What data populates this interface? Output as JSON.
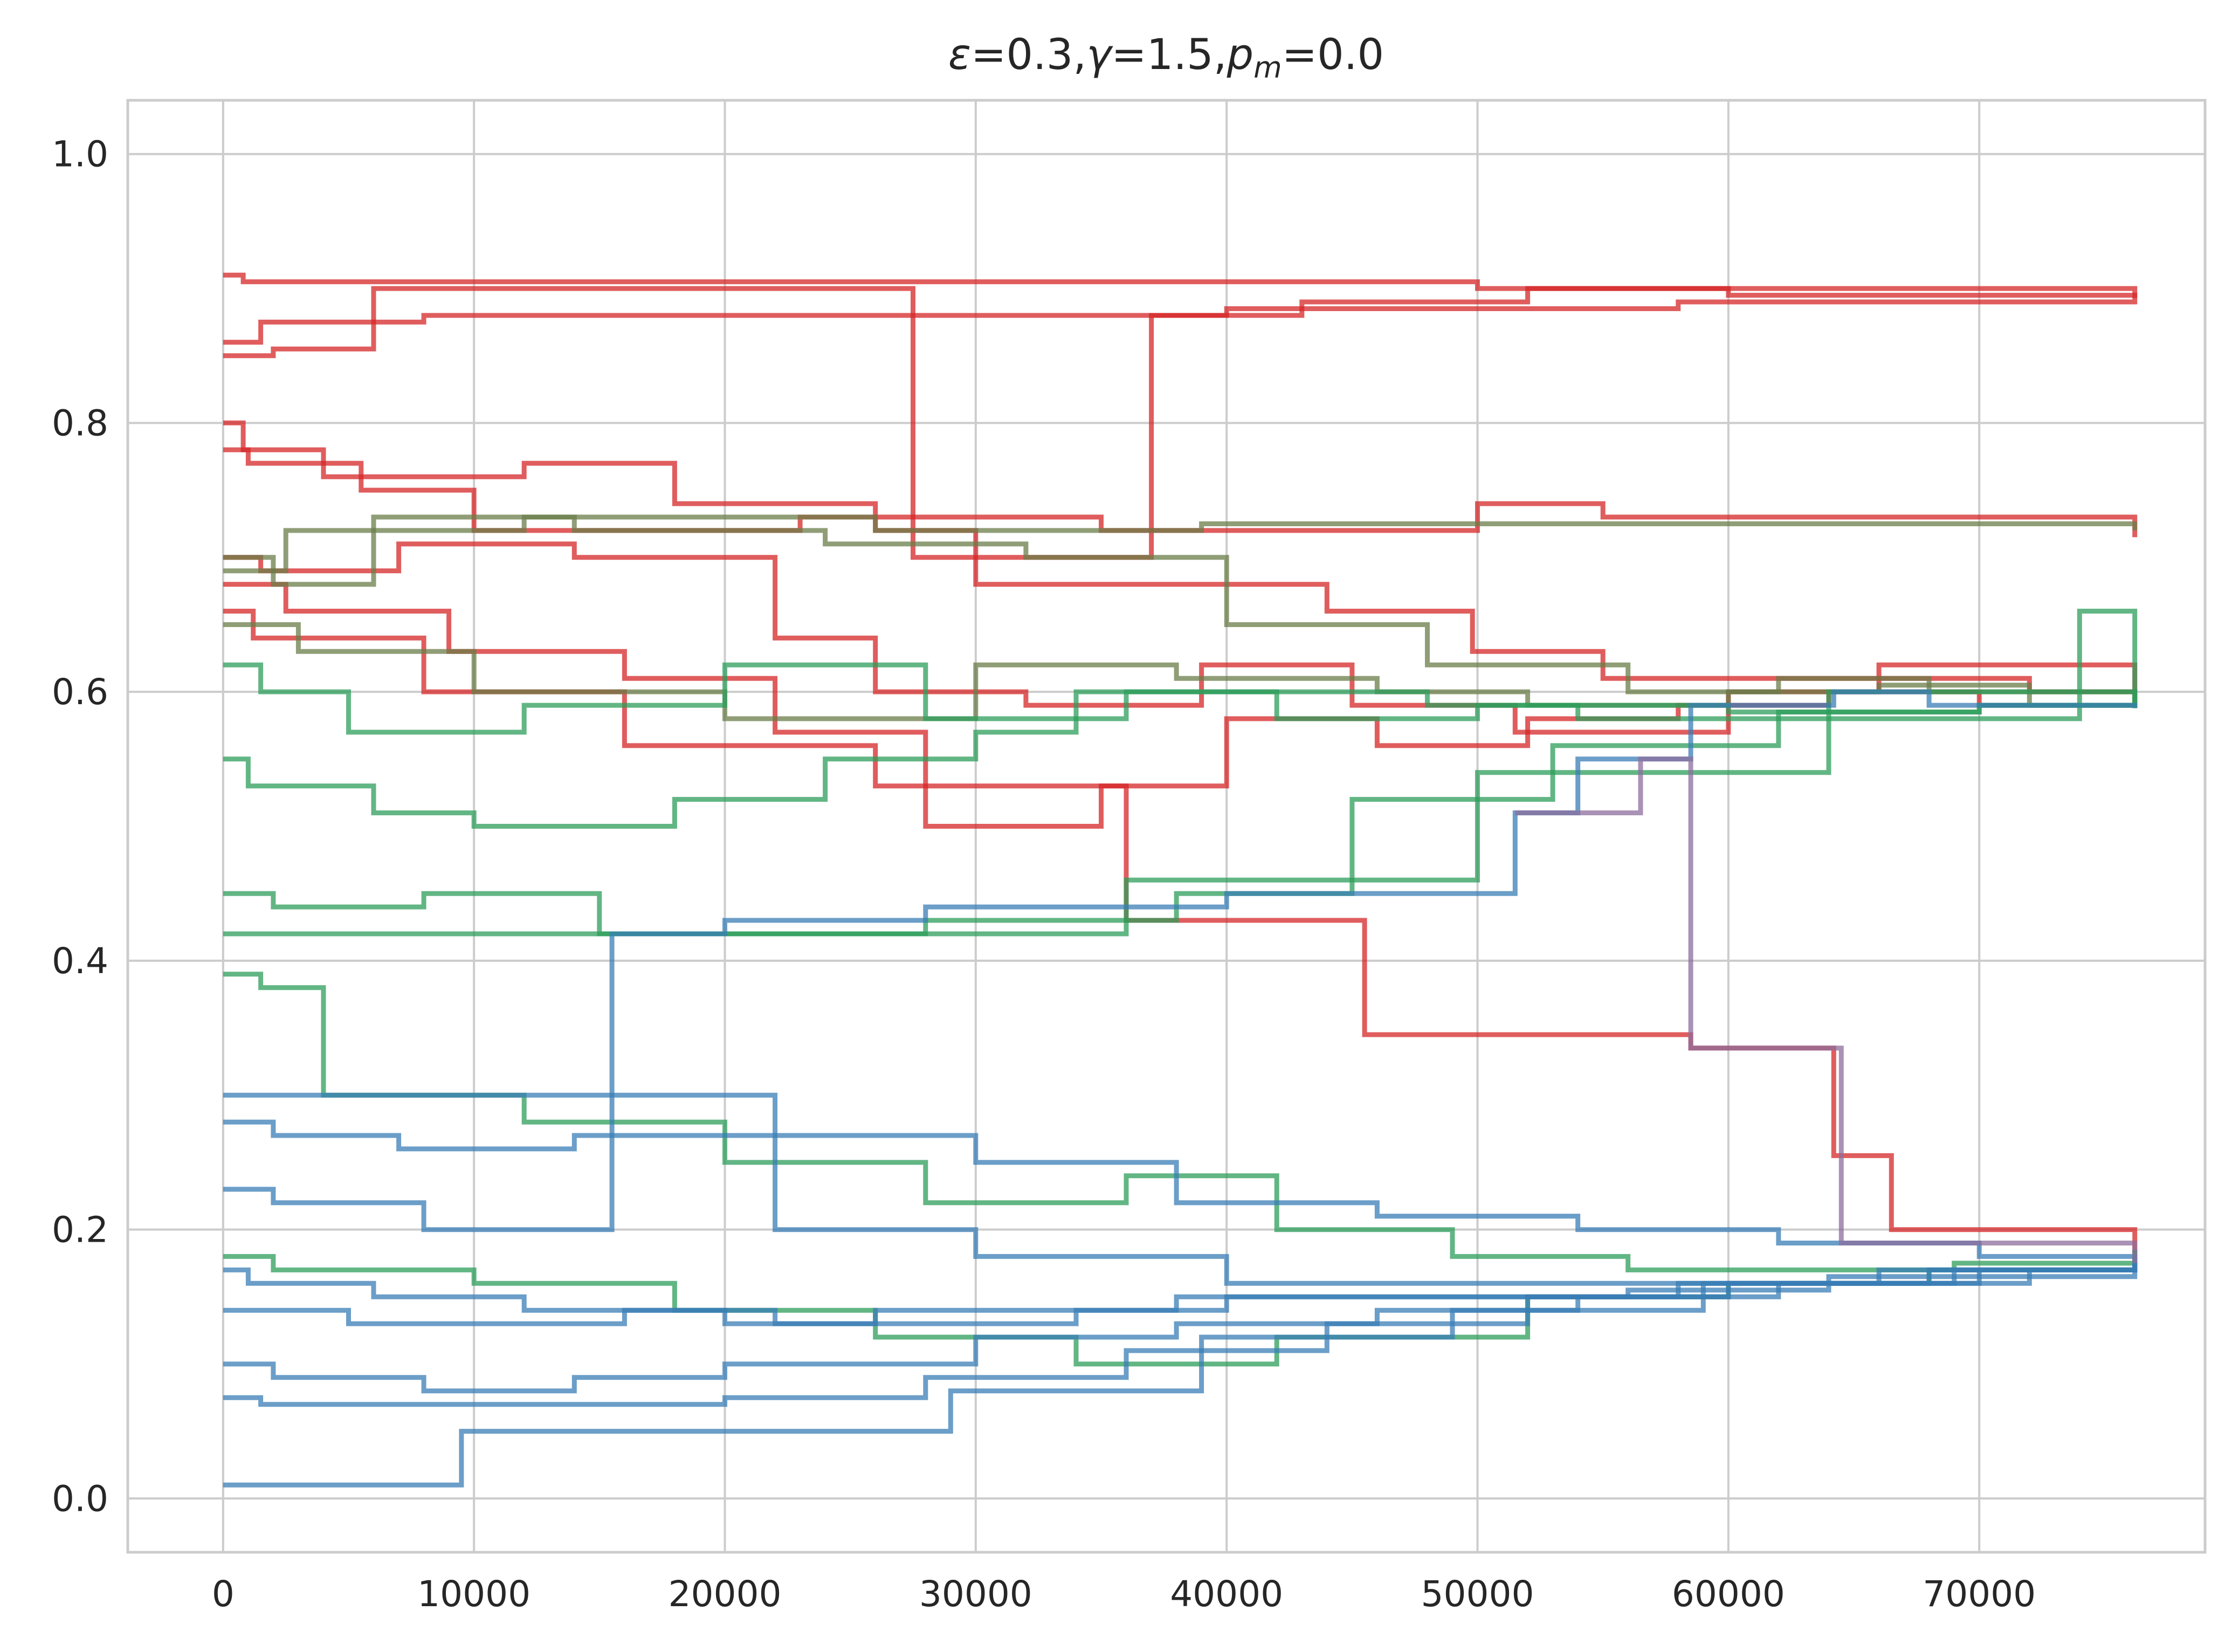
{
  "chart_data": {
    "type": "line",
    "title": "ε=0.3,γ=1.5,p_m=0.0",
    "title_parts": {
      "eps": "ε",
      "eps_val": "=0.3,",
      "gamma": "γ",
      "gamma_val": "=1.5,",
      "p": "p",
      "p_sub": "m",
      "p_val": "=0.0"
    },
    "xlabel": "",
    "ylabel": "",
    "xlim": [
      -3800,
      79000
    ],
    "ylim": [
      -0.04,
      1.04
    ],
    "x_ticks": [
      0,
      10000,
      20000,
      30000,
      40000,
      50000,
      60000,
      70000
    ],
    "y_ticks": [
      0.0,
      0.2,
      0.4,
      0.6,
      0.8,
      1.0
    ],
    "x_tick_labels": [
      "0",
      "10000",
      "20000",
      "30000",
      "40000",
      "50000",
      "60000",
      "70000"
    ],
    "y_tick_labels": [
      "0.0",
      "0.2",
      "0.4",
      "0.6",
      "0.8",
      "1.0"
    ],
    "grid": true,
    "legend": "none",
    "colors": {
      "red": "#d62728",
      "green": "#2ca02c",
      "seagreen": "#2e9e5b",
      "blue": "#3a7db5",
      "olive": "#6b7d4a",
      "purple": "#8c6d9c"
    },
    "series": [
      {
        "color": "#d62728",
        "x": [
          0,
          800,
          10000,
          30000,
          50000,
          60000,
          76200
        ],
        "y": [
          0.91,
          0.905,
          0.905,
          0.905,
          0.9,
          0.895,
          0.893
        ]
      },
      {
        "color": "#d62728",
        "x": [
          0,
          1500,
          8000,
          20000,
          40000,
          58000,
          76200
        ],
        "y": [
          0.86,
          0.875,
          0.88,
          0.88,
          0.885,
          0.89,
          0.893
        ]
      },
      {
        "color": "#d62728",
        "x": [
          0,
          2000,
          6000,
          27500,
          37000,
          43000,
          52000,
          76200
        ],
        "y": [
          0.85,
          0.855,
          0.9,
          0.7,
          0.88,
          0.89,
          0.9,
          0.893
        ]
      },
      {
        "color": "#d62728",
        "x": [
          0,
          1000,
          5500,
          10000,
          23000,
          35000,
          50000,
          55000,
          64000,
          76200
        ],
        "y": [
          0.78,
          0.77,
          0.75,
          0.72,
          0.73,
          0.72,
          0.74,
          0.73,
          0.73,
          0.715
        ]
      },
      {
        "color": "#d62728",
        "x": [
          0,
          800,
          4000,
          12000,
          18000,
          26000,
          30000,
          44000,
          49800,
          55000,
          72000,
          76200
        ],
        "y": [
          0.8,
          0.78,
          0.76,
          0.77,
          0.74,
          0.72,
          0.68,
          0.66,
          0.63,
          0.61,
          0.6,
          0.588
        ]
      },
      {
        "color": "#d62728",
        "x": [
          0,
          1500,
          7000,
          14000,
          22000,
          26000,
          32000,
          39000,
          45000,
          51500,
          60000,
          66000,
          76200
        ],
        "y": [
          0.7,
          0.69,
          0.71,
          0.7,
          0.64,
          0.6,
          0.59,
          0.62,
          0.59,
          0.57,
          0.6,
          0.62,
          0.588
        ]
      },
      {
        "color": "#d62728",
        "x": [
          0,
          2500,
          9000,
          16000,
          22000,
          28000,
          35000,
          40000,
          46000,
          52000,
          58000,
          64000,
          70000,
          76200
        ],
        "y": [
          0.68,
          0.66,
          0.63,
          0.61,
          0.57,
          0.5,
          0.53,
          0.58,
          0.56,
          0.58,
          0.59,
          0.6,
          0.59,
          0.588
        ]
      },
      {
        "color": "#d62728",
        "x": [
          0,
          1200,
          8000,
          16000,
          26000,
          36000,
          45500,
          58500,
          64200,
          66500,
          76200
        ],
        "y": [
          0.66,
          0.64,
          0.6,
          0.56,
          0.53,
          0.43,
          0.345,
          0.335,
          0.255,
          0.2,
          0.175
        ]
      },
      {
        "color": "#6b7d4a",
        "x": [
          0,
          2000,
          6000,
          14000,
          24000,
          32000,
          40000,
          48000,
          56000,
          62000,
          68000,
          76200
        ],
        "y": [
          0.7,
          0.68,
          0.73,
          0.72,
          0.71,
          0.7,
          0.65,
          0.62,
          0.6,
          0.61,
          0.6,
          0.588
        ]
      },
      {
        "color": "#6b7d4a",
        "x": [
          0,
          3000,
          10000,
          20000,
          30000,
          38000,
          46000,
          52000,
          60000,
          66000,
          72000,
          76200
        ],
        "y": [
          0.65,
          0.63,
          0.6,
          0.58,
          0.62,
          0.61,
          0.6,
          0.59,
          0.6,
          0.605,
          0.59,
          0.588
        ]
      },
      {
        "color": "#6b7d4a",
        "x": [
          0,
          2500,
          12000,
          26000,
          39000,
          55000,
          75000,
          76200
        ],
        "y": [
          0.69,
          0.72,
          0.73,
          0.72,
          0.725,
          0.725,
          0.725,
          0.72
        ]
      },
      {
        "color": "#2e9e5b",
        "x": [
          0,
          1500,
          5000,
          12000,
          20000,
          28000,
          36000,
          42000,
          50000,
          60000,
          70000,
          76200
        ],
        "y": [
          0.62,
          0.6,
          0.57,
          0.59,
          0.62,
          0.58,
          0.6,
          0.58,
          0.59,
          0.585,
          0.59,
          0.588
        ]
      },
      {
        "color": "#2e9e5b",
        "x": [
          0,
          1000,
          6000,
          10000,
          18000,
          24000,
          30000,
          34000,
          40000,
          48000,
          54000,
          62000,
          70000,
          76200
        ],
        "y": [
          0.55,
          0.53,
          0.51,
          0.5,
          0.52,
          0.55,
          0.57,
          0.6,
          0.6,
          0.59,
          0.58,
          0.585,
          0.59,
          0.588
        ]
      },
      {
        "color": "#2e9e5b",
        "x": [
          0,
          2000,
          8000,
          15000,
          26000,
          36000,
          50000,
          64000,
          76200
        ],
        "y": [
          0.45,
          0.44,
          0.45,
          0.42,
          0.42,
          0.46,
          0.54,
          0.6,
          0.588
        ]
      },
      {
        "color": "#2e9e5b",
        "x": [
          0,
          1500,
          9500,
          18000,
          28000,
          38000,
          45000,
          53000,
          62000,
          74000,
          76200
        ],
        "y": [
          0.42,
          0.42,
          0.42,
          0.42,
          0.43,
          0.45,
          0.52,
          0.56,
          0.58,
          0.66,
          0.588
        ]
      },
      {
        "color": "#2e9e5b",
        "x": [
          0,
          1500,
          4000,
          12000,
          20000,
          28000,
          36000,
          42000,
          49000,
          56000,
          62000,
          69000,
          76200
        ],
        "y": [
          0.39,
          0.38,
          0.3,
          0.28,
          0.25,
          0.22,
          0.24,
          0.2,
          0.18,
          0.17,
          0.17,
          0.175,
          0.185
        ]
      },
      {
        "color": "#2e9e5b",
        "x": [
          0,
          2000,
          10000,
          18000,
          26000,
          34000,
          42000,
          52000,
          60000,
          68000,
          76200
        ],
        "y": [
          0.18,
          0.17,
          0.16,
          0.14,
          0.12,
          0.1,
          0.12,
          0.15,
          0.16,
          0.17,
          0.185
        ]
      },
      {
        "color": "#3a7db5",
        "x": [
          0,
          2000,
          8000,
          14000,
          22000,
          30000,
          38000,
          46000,
          54000,
          62000,
          70000,
          76200
        ],
        "y": [
          0.3,
          0.3,
          0.3,
          0.3,
          0.27,
          0.25,
          0.22,
          0.21,
          0.2,
          0.19,
          0.18,
          0.175
        ]
      },
      {
        "color": "#3a7db5",
        "x": [
          0,
          2000,
          7000,
          14000,
          22000,
          30000,
          40000,
          52000,
          64000,
          76200
        ],
        "y": [
          0.28,
          0.27,
          0.26,
          0.27,
          0.2,
          0.18,
          0.16,
          0.16,
          0.165,
          0.175
        ]
      },
      {
        "color": "#3a7db5",
        "x": [
          0,
          1000,
          6000,
          12000,
          20000,
          26000,
          32000,
          38000,
          44000,
          50000,
          58000,
          66000,
          76200
        ],
        "y": [
          0.17,
          0.16,
          0.15,
          0.14,
          0.13,
          0.14,
          0.14,
          0.15,
          0.15,
          0.15,
          0.16,
          0.17,
          0.175
        ]
      },
      {
        "color": "#3a7db5",
        "x": [
          0,
          1500,
          5000,
          10000,
          16000,
          22000,
          28000,
          34000,
          40000,
          48000,
          56000,
          64000,
          72000,
          76200
        ],
        "y": [
          0.14,
          0.14,
          0.13,
          0.13,
          0.14,
          0.13,
          0.13,
          0.14,
          0.15,
          0.15,
          0.155,
          0.16,
          0.17,
          0.175
        ]
      },
      {
        "color": "#3a7db5",
        "x": [
          0,
          2000,
          8000,
          14000,
          20000,
          30000,
          38000,
          46000,
          54000,
          62000,
          70000,
          76200
        ],
        "y": [
          0.1,
          0.09,
          0.08,
          0.09,
          0.1,
          0.12,
          0.13,
          0.14,
          0.15,
          0.16,
          0.17,
          0.175
        ]
      },
      {
        "color": "#3a7db5",
        "x": [
          0,
          1500,
          7000,
          13000,
          20000,
          28000,
          36000,
          44000,
          52000,
          60000,
          68000,
          76200
        ],
        "y": [
          0.075,
          0.07,
          0.07,
          0.07,
          0.075,
          0.09,
          0.11,
          0.13,
          0.15,
          0.16,
          0.17,
          0.175
        ]
      },
      {
        "color": "#3a7db5",
        "x": [
          0,
          1500,
          9500,
          19000,
          29000,
          39000,
          49000,
          59000,
          69000,
          76200
        ],
        "y": [
          0.01,
          0.01,
          0.05,
          0.05,
          0.08,
          0.12,
          0.14,
          0.16,
          0.17,
          0.175
        ]
      },
      {
        "color": "#3a7db5",
        "x": [
          0,
          2000,
          8000,
          15500,
          20000,
          28000,
          40000,
          51500,
          54000,
          58500,
          64200,
          68000,
          76200
        ],
        "y": [
          0.23,
          0.22,
          0.2,
          0.42,
          0.43,
          0.44,
          0.45,
          0.51,
          0.55,
          0.59,
          0.6,
          0.59,
          0.588
        ]
      },
      {
        "color": "#8c6d9c",
        "x": [
          51500,
          56500,
          58500,
          64500,
          76200
        ],
        "y": [
          0.51,
          0.55,
          0.335,
          0.19,
          0.175
        ]
      }
    ]
  }
}
